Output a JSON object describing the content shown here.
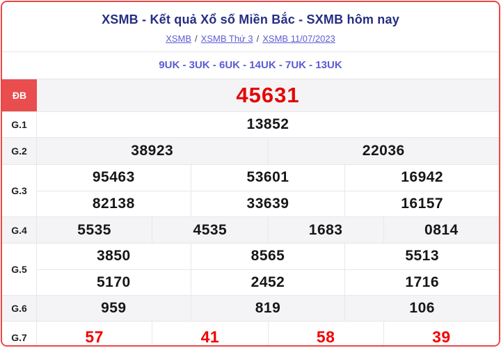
{
  "header": {
    "title": "XSMB - Kết quả Xổ số Miền Bắc - SXMB hôm nay",
    "separator": "/",
    "breadcrumb": [
      {
        "label": "XSMB"
      },
      {
        "label": "XSMB Thứ 3"
      },
      {
        "label": "XSMB 11/07/2023"
      }
    ],
    "uk_line": "9UK - 3UK - 6UK - 14UK - 7UK - 13UK"
  },
  "table": {
    "rows": [
      {
        "label": "ĐB",
        "lines": [
          [
            "45631"
          ]
        ]
      },
      {
        "label": "G.1",
        "lines": [
          [
            "13852"
          ]
        ]
      },
      {
        "label": "G.2",
        "lines": [
          [
            "38923",
            "22036"
          ]
        ]
      },
      {
        "label": "G.3",
        "lines": [
          [
            "95463",
            "53601",
            "16942"
          ],
          [
            "82138",
            "33639",
            "16157"
          ]
        ]
      },
      {
        "label": "G.4",
        "lines": [
          [
            "5535",
            "4535",
            "1683",
            "0814"
          ]
        ]
      },
      {
        "label": "G.5",
        "lines": [
          [
            "3850",
            "8565",
            "5513"
          ],
          [
            "5170",
            "2452",
            "1716"
          ]
        ]
      },
      {
        "label": "G.6",
        "lines": [
          [
            "959",
            "819",
            "106"
          ]
        ]
      },
      {
        "label": "G.7",
        "lines": [
          [
            "57",
            "41",
            "58",
            "39"
          ]
        ]
      }
    ]
  },
  "colors": {
    "page_border": "#ee4545",
    "title_text": "#252e82",
    "link_text": "#5b5bd6",
    "special_label_bg": "#e94d4d",
    "special_number": "#e30505",
    "g7_number": "#f30000",
    "alt_row_bg": "#f4f4f6",
    "grid_line": "#e7e7ea"
  }
}
